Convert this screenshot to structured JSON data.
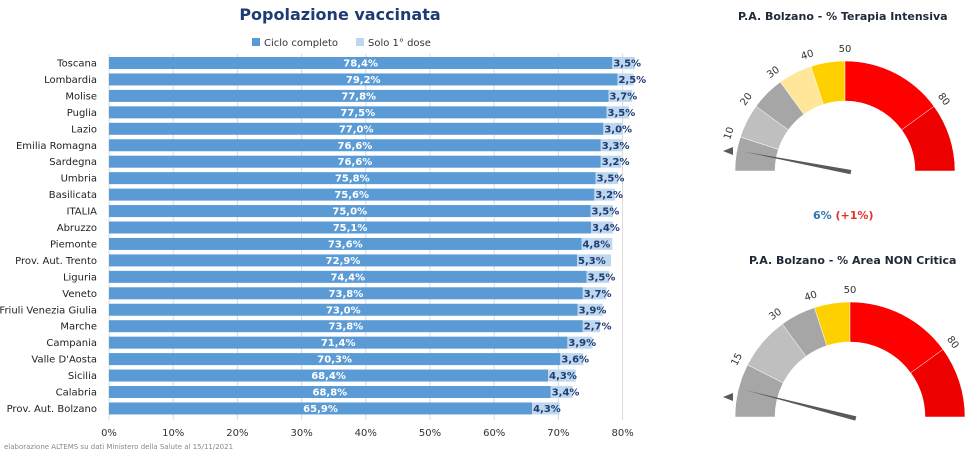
{
  "chart_data": [
    {
      "type": "bar",
      "orientation": "horizontal",
      "stacked": true,
      "title": "Popolazione vaccinata",
      "categories": [
        "Toscana",
        "Lombardia",
        "Molise",
        "Puglia",
        "Lazio",
        "Emilia Romagna",
        "Sardegna",
        "Umbria",
        "Basilicata",
        "ITALIA",
        "Abruzzo",
        "Piemonte",
        "Prov. Aut. Trento",
        "Liguria",
        "Veneto",
        "Friuli Venezia Giulia",
        "Marche",
        "Campania",
        "Valle D'Aosta",
        "Sicilia",
        "Calabria",
        "Prov. Aut. Bolzano"
      ],
      "series": [
        {
          "name": "Ciclo completo",
          "color": "#5b9bd5",
          "values": [
            78.4,
            79.2,
            77.8,
            77.5,
            77.0,
            76.6,
            76.6,
            75.8,
            75.6,
            75.0,
            75.1,
            73.6,
            72.9,
            74.4,
            73.8,
            73.0,
            73.8,
            71.4,
            70.3,
            68.4,
            68.8,
            65.9
          ],
          "labels": [
            "78,4%",
            "79,2%",
            "77,8%",
            "77,5%",
            "77,0%",
            "76,6%",
            "76,6%",
            "75,8%",
            "75,6%",
            "75,0%",
            "75,1%",
            "73,6%",
            "72,9%",
            "74,4%",
            "73,8%",
            "73,0%",
            "73,8%",
            "71,4%",
            "70,3%",
            "68,4%",
            "68,8%",
            "65,9%"
          ]
        },
        {
          "name": "Solo 1° dose",
          "color": "#bdd7ee",
          "values": [
            3.5,
            2.5,
            3.7,
            3.5,
            3.0,
            3.3,
            3.2,
            3.5,
            3.2,
            3.5,
            3.4,
            4.8,
            5.3,
            3.5,
            3.7,
            3.9,
            2.7,
            3.9,
            3.6,
            4.3,
            3.4,
            4.3
          ],
          "labels": [
            "3,5%",
            "2,5%",
            "3,7%",
            "3,5%",
            "3,0%",
            "3,3%",
            "3,2%",
            "3,5%",
            "3,2%",
            "3,5%",
            "3,4%",
            "4,8%",
            "5,3%",
            "3,5%",
            "3,7%",
            "3,9%",
            "2,7%",
            "3,9%",
            "3,6%",
            "4,3%",
            "3,4%",
            "4,3%"
          ]
        }
      ],
      "xlim": [
        0,
        80
      ],
      "xticks": [
        "0%",
        "10%",
        "20%",
        "30%",
        "40%",
        "50%",
        "60%",
        "70%",
        "80%"
      ],
      "grid": "vertical",
      "legend": "top",
      "footnote": "elaborazione ALTEMS su dati Ministero della Salute al 15/11/2021"
    },
    {
      "type": "gauge",
      "title": "P.A. Bolzano - % Terapia Intensiva",
      "value": 6,
      "value_label": "6%",
      "delta_label": "(+1%)",
      "scale_max": 100,
      "tick_labels": [
        {
          "value": 10,
          "text": "10"
        },
        {
          "value": 20,
          "text": "20"
        },
        {
          "value": 30,
          "text": "30"
        },
        {
          "value": 40,
          "text": "40"
        },
        {
          "value": 50,
          "text": "50"
        },
        {
          "value": 80,
          "text": "80"
        }
      ],
      "bands": [
        {
          "from": 0,
          "to": 10,
          "color": "#a6a6a6"
        },
        {
          "from": 10,
          "to": 20,
          "color": "#bfbfbf"
        },
        {
          "from": 20,
          "to": 30,
          "color": "#a6a6a6"
        },
        {
          "from": 30,
          "to": 40,
          "color": "#ffe699"
        },
        {
          "from": 40,
          "to": 50,
          "color": "#ffd000"
        },
        {
          "from": 50,
          "to": 80,
          "color": "#ff0000"
        },
        {
          "from": 80,
          "to": 100,
          "color": "#ee0000"
        }
      ]
    },
    {
      "type": "gauge",
      "title": "P.A. Bolzano - % Area NON Critica",
      "value": 8,
      "scale_max": 100,
      "tick_labels": [
        {
          "value": 15,
          "text": "15"
        },
        {
          "value": 30,
          "text": "30"
        },
        {
          "value": 40,
          "text": "40"
        },
        {
          "value": 50,
          "text": "50"
        },
        {
          "value": 80,
          "text": "80"
        }
      ],
      "bands": [
        {
          "from": 0,
          "to": 15,
          "color": "#a6a6a6"
        },
        {
          "from": 15,
          "to": 30,
          "color": "#bfbfbf"
        },
        {
          "from": 30,
          "to": 40,
          "color": "#a6a6a6"
        },
        {
          "from": 40,
          "to": 50,
          "color": "#ffd000"
        },
        {
          "from": 50,
          "to": 80,
          "color": "#ff0000"
        },
        {
          "from": 80,
          "to": 100,
          "color": "#ee0000"
        }
      ]
    }
  ]
}
